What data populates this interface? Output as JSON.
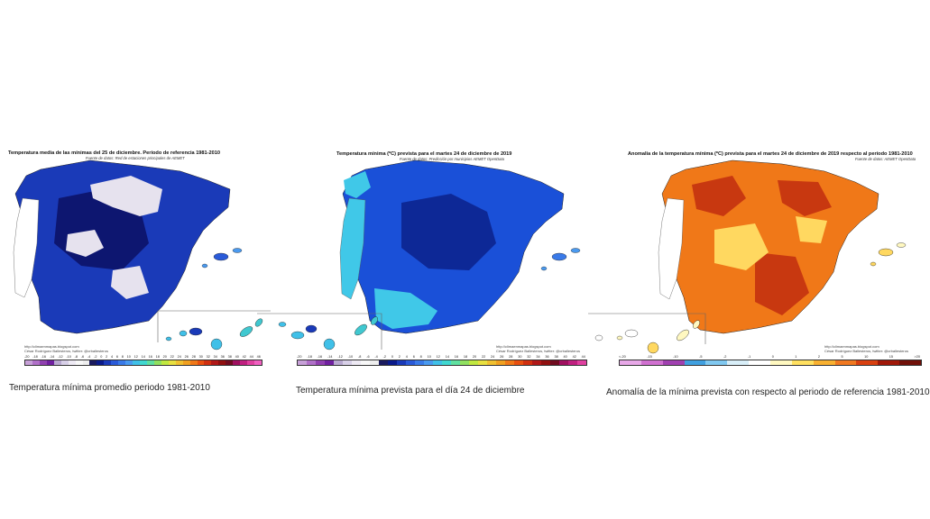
{
  "maps": [
    {
      "title": "Temperatura media de las mínimas del 25 de diciembre. Período de referencia 1981-2010",
      "source": "Fuente de datos: Red de estaciones principales de AEMET",
      "credit_url": "http://climaenmapas.blogspot.com",
      "credit_author": "César Rodríguez Ballesteros, twitter: @crballesteros",
      "ticks": [
        "-20",
        "-18",
        "-16",
        "-14",
        "-12",
        "-10",
        "-8",
        "-6",
        "-4",
        "-2",
        "0",
        "2",
        "4",
        "6",
        "8",
        "10",
        "12",
        "14",
        "16",
        "18",
        "20",
        "22",
        "24",
        "26",
        "28",
        "30",
        "32",
        "34",
        "36",
        "38",
        "40",
        "42",
        "44",
        "46"
      ],
      "caption": "Temperatura mínima promedio periodo 1981-2010",
      "palette": [
        "#c7a0d8",
        "#b070c8",
        "#9040b0",
        "#7020a0",
        "#b8a8d0",
        "#d8d0e8",
        "#eeeaf4",
        "#f8f8f8",
        "#eeeeee",
        "#1a1a5e",
        "#0a1a8a",
        "#1a3ab8",
        "#2a5ad8",
        "#3a7ae8",
        "#4a9af0",
        "#40c0e8",
        "#40d8d0",
        "#60e0a0",
        "#90e060",
        "#c0e840",
        "#e8e040",
        "#f0c030",
        "#f0a020",
        "#f07818",
        "#e85010",
        "#d03010",
        "#b01818",
        "#901010",
        "#700c20",
        "#a01060",
        "#c02080",
        "#e040a0",
        "#f060c0"
      ]
    },
    {
      "title": "Temperatura mínima (ºC) prevista para el martes 24 de diciembre de 2019",
      "source": "Fuente de datos: Predicción por municipios AEMET OpenData",
      "credit_url": "http://climaenmapas.blogspot.com",
      "credit_author": "César Rodríguez Ballesteros, twitter: @crballesteros",
      "ticks": [
        "-20",
        "-18",
        "-16",
        "-14",
        "-12",
        "-10",
        "-8",
        "-6",
        "-4",
        "-2",
        "0",
        "2",
        "4",
        "6",
        "8",
        "10",
        "12",
        "14",
        "16",
        "18",
        "20",
        "22",
        "24",
        "26",
        "28",
        "30",
        "32",
        "34",
        "36",
        "38",
        "40",
        "42",
        "44"
      ],
      "caption": "Temperatura mínima prevista para el día 24 de diciembre",
      "palette": [
        "#c7a0d8",
        "#b070c8",
        "#9040b0",
        "#7020a0",
        "#b8a8d0",
        "#d8d0e8",
        "#eeeaf4",
        "#f8f8f8",
        "#eeeeee",
        "#1a1a5e",
        "#0a1a8a",
        "#1a3ab8",
        "#2a5ad8",
        "#3a7ae8",
        "#4a9af0",
        "#40c0e8",
        "#40d8d0",
        "#60e0a0",
        "#90e060",
        "#c0e840",
        "#e8e040",
        "#f0c030",
        "#f0a020",
        "#f07818",
        "#e85010",
        "#d03010",
        "#b01818",
        "#901010",
        "#700c20",
        "#a01060",
        "#c02080",
        "#e040a0"
      ]
    },
    {
      "title": "Anomalía de la temperatura mínima (ºC) prevista para el martes 24 de diciembre de 2019 respecto al período 1981-2010",
      "source": "Fuente de datos: AEMET OpenData",
      "credit_url": "http://climaenmapas.blogspot.com",
      "credit_author": "César Rodríguez Ballesteros, twitter: @crballesteros",
      "ticks": [
        "<-20",
        "-15",
        "-10",
        "-5",
        "-2",
        "-1",
        "0",
        "1",
        "2",
        "5",
        "10",
        "15",
        ">20"
      ],
      "caption": "Anomalía de la mínima prevista con respecto al periodo de referencia 1981-2010",
      "palette": [
        "#e8a8e8",
        "#d070d0",
        "#a040b0",
        "#40a0e0",
        "#80c8f0",
        "#d8eef8",
        "#ffffff",
        "#fff8c0",
        "#ffe060",
        "#f8b030",
        "#f07820",
        "#d84010",
        "#a01808",
        "#701008"
      ]
    }
  ],
  "colors": {
    "spain_p1": "#1a3ab8",
    "spain_p1_dark": "#0d1670",
    "spain_p1_light": "#e6e2ee",
    "spain_p2": "#1a50d8",
    "spain_p2_dark": "#0d2896",
    "spain_p2_light": "#40c8e8",
    "spain_p3": "#f07818",
    "spain_p3_dark": "#c83810",
    "spain_p3_light": "#ffd860",
    "portugal": "#ffffff"
  }
}
